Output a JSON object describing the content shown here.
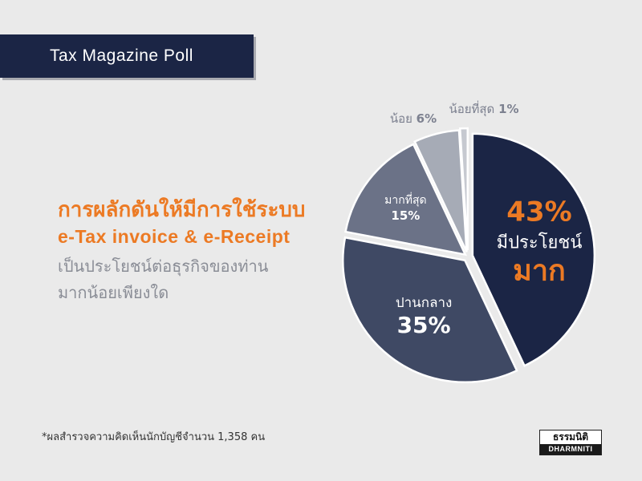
{
  "banner": {
    "title": "Tax Magazine Poll"
  },
  "headline": {
    "line1": "การผลักดันให้มีการใช้ระบบ",
    "line2": "e-Tax invoice & e-Receipt",
    "line3": "เป็นประโยชน์ต่อธุรกิจของท่าน",
    "line4": "มากน้อยเพียงใด"
  },
  "chart_data": {
    "type": "pie",
    "title": "",
    "slices": [
      {
        "label": "มีประโยชน์ มาก",
        "value": 43,
        "value_label": "43%",
        "color": "#1b2545"
      },
      {
        "label": "ปานกลาง",
        "value": 35,
        "value_label": "35%",
        "color": "#3f4964"
      },
      {
        "label": "มากที่สุด",
        "value": 15,
        "value_label": "15%",
        "color": "#6b7287"
      },
      {
        "label": "น้อย",
        "value": 6,
        "value_label": "6%",
        "color": "#a6abb6"
      },
      {
        "label": "น้อยที่สุด",
        "value": 1,
        "value_label": "1%",
        "color": "#c6c9d0"
      }
    ],
    "start_angle_deg": 0,
    "direction": "clockwise",
    "accent_color": "#ec7a24"
  },
  "footnote": "*ผลสำรวจความคิดเห็นนักบัญชีจำนวน 1,358 คน",
  "logo": {
    "thai": "ธรรมนิติ",
    "latin": "DHARMNITI"
  }
}
